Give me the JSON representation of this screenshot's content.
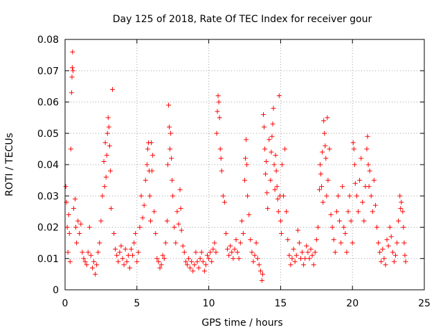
{
  "chart_data": {
    "type": "scatter",
    "title": "Day 125 of 2018, Rate Of TEC Index for receiver gour",
    "xlabel": "GPS time / hours",
    "ylabel": "ROTI / TECUs",
    "xlim": [
      0,
      25
    ],
    "ylim": [
      0,
      0.08
    ],
    "xticks": [
      0,
      5,
      10,
      15,
      20,
      25
    ],
    "yticks": [
      0,
      0.01,
      0.02,
      0.03,
      0.04,
      0.05,
      0.06,
      0.07,
      0.08
    ],
    "xtick_labels": [
      "0",
      "5",
      "10",
      "15",
      "20",
      "25"
    ],
    "ytick_labels": [
      "0",
      "0.01",
      "0.02",
      "0.03",
      "0.04",
      "0.05",
      "0.06",
      "0.07",
      "0.08"
    ],
    "grid": true,
    "marker": "plus",
    "color": "#ff0000",
    "series": [
      {
        "points": [
          [
            0.05,
            0.033
          ],
          [
            0.1,
            0.028
          ],
          [
            0.15,
            0.02
          ],
          [
            0.2,
            0.012
          ],
          [
            0.25,
            0.024
          ],
          [
            0.3,
            0.018
          ],
          [
            0.35,
            0.009
          ],
          [
            0.4,
            0.045
          ],
          [
            0.45,
            0.063
          ],
          [
            0.48,
            0.068
          ],
          [
            0.5,
            0.071
          ],
          [
            0.52,
            0.076
          ],
          [
            0.55,
            0.07
          ],
          [
            0.6,
            0.026
          ],
          [
            0.7,
            0.029
          ],
          [
            0.75,
            0.02
          ],
          [
            0.8,
            0.015
          ],
          [
            0.9,
            0.022
          ],
          [
            1.0,
            0.018
          ],
          [
            1.1,
            0.021
          ],
          [
            1.2,
            0.012
          ],
          [
            1.3,
            0.01
          ],
          [
            1.4,
            0.009
          ],
          [
            1.5,
            0.008
          ],
          [
            1.6,
            0.012
          ],
          [
            1.7,
            0.02
          ],
          [
            1.8,
            0.011
          ],
          [
            1.9,
            0.007
          ],
          [
            2.0,
            0.009
          ],
          [
            2.1,
            0.005
          ],
          [
            2.2,
            0.008
          ],
          [
            2.3,
            0.012
          ],
          [
            2.4,
            0.015
          ],
          [
            2.5,
            0.022
          ],
          [
            2.6,
            0.03
          ],
          [
            2.7,
            0.041
          ],
          [
            2.75,
            0.033
          ],
          [
            2.8,
            0.047
          ],
          [
            2.85,
            0.036
          ],
          [
            2.9,
            0.043
          ],
          [
            2.95,
            0.05
          ],
          [
            3.0,
            0.055
          ],
          [
            3.05,
            0.052
          ],
          [
            3.1,
            0.046
          ],
          [
            3.15,
            0.038
          ],
          [
            3.2,
            0.026
          ],
          [
            3.3,
            0.064
          ],
          [
            3.4,
            0.018
          ],
          [
            3.5,
            0.013
          ],
          [
            3.6,
            0.011
          ],
          [
            3.7,
            0.009
          ],
          [
            3.8,
            0.012
          ],
          [
            3.9,
            0.014
          ],
          [
            4.0,
            0.01
          ],
          [
            4.1,
            0.008
          ],
          [
            4.2,
            0.013
          ],
          [
            4.3,
            0.009
          ],
          [
            4.4,
            0.011
          ],
          [
            4.5,
            0.007
          ],
          [
            4.6,
            0.013
          ],
          [
            4.7,
            0.011
          ],
          [
            4.8,
            0.015
          ],
          [
            4.9,
            0.018
          ],
          [
            5.0,
            0.009
          ],
          [
            5.1,
            0.012
          ],
          [
            5.2,
            0.02
          ],
          [
            5.3,
            0.03
          ],
          [
            5.4,
            0.023
          ],
          [
            5.5,
            0.027
          ],
          [
            5.6,
            0.035
          ],
          [
            5.7,
            0.04
          ],
          [
            5.75,
            0.045
          ],
          [
            5.8,
            0.047
          ],
          [
            5.85,
            0.038
          ],
          [
            5.9,
            0.03
          ],
          [
            5.95,
            0.022
          ],
          [
            6.0,
            0.047
          ],
          [
            6.05,
            0.038
          ],
          [
            6.1,
            0.043
          ],
          [
            6.2,
            0.025
          ],
          [
            6.3,
            0.018
          ],
          [
            6.4,
            0.01
          ],
          [
            6.5,
            0.009
          ],
          [
            6.6,
            0.007
          ],
          [
            6.7,
            0.008
          ],
          [
            6.8,
            0.011
          ],
          [
            6.9,
            0.01
          ],
          [
            7.0,
            0.015
          ],
          [
            7.1,
            0.022
          ],
          [
            7.15,
            0.04
          ],
          [
            7.2,
            0.059
          ],
          [
            7.25,
            0.052
          ],
          [
            7.3,
            0.045
          ],
          [
            7.35,
            0.05
          ],
          [
            7.4,
            0.042
          ],
          [
            7.45,
            0.035
          ],
          [
            7.5,
            0.03
          ],
          [
            7.6,
            0.02
          ],
          [
            7.7,
            0.015
          ],
          [
            7.8,
            0.025
          ],
          [
            7.9,
            0.021
          ],
          [
            8.0,
            0.032
          ],
          [
            8.05,
            0.026
          ],
          [
            8.1,
            0.019
          ],
          [
            8.2,
            0.014
          ],
          [
            8.3,
            0.012
          ],
          [
            8.4,
            0.009
          ],
          [
            8.5,
            0.008
          ],
          [
            8.6,
            0.01
          ],
          [
            8.7,
            0.007
          ],
          [
            8.8,
            0.009
          ],
          [
            8.9,
            0.006
          ],
          [
            9.0,
            0.008
          ],
          [
            9.1,
            0.012
          ],
          [
            9.2,
            0.009
          ],
          [
            9.3,
            0.007
          ],
          [
            9.4,
            0.01
          ],
          [
            9.5,
            0.012
          ],
          [
            9.6,
            0.009
          ],
          [
            9.7,
            0.006
          ],
          [
            9.8,
            0.008
          ],
          [
            9.9,
            0.011
          ],
          [
            10.0,
            0.01
          ],
          [
            10.1,
            0.012
          ],
          [
            10.2,
            0.009
          ],
          [
            10.3,
            0.013
          ],
          [
            10.4,
            0.015
          ],
          [
            10.5,
            0.012
          ],
          [
            10.55,
            0.05
          ],
          [
            10.6,
            0.057
          ],
          [
            10.65,
            0.062
          ],
          [
            10.7,
            0.06
          ],
          [
            10.75,
            0.055
          ],
          [
            10.8,
            0.045
          ],
          [
            10.85,
            0.042
          ],
          [
            10.9,
            0.038
          ],
          [
            11.0,
            0.03
          ],
          [
            11.1,
            0.028
          ],
          [
            11.2,
            0.018
          ],
          [
            11.3,
            0.013
          ],
          [
            11.4,
            0.011
          ],
          [
            11.5,
            0.014
          ],
          [
            11.6,
            0.012
          ],
          [
            11.7,
            0.01
          ],
          [
            11.8,
            0.013
          ],
          [
            11.9,
            0.016
          ],
          [
            12.0,
            0.012
          ],
          [
            12.1,
            0.01
          ],
          [
            12.2,
            0.015
          ],
          [
            12.3,
            0.022
          ],
          [
            12.4,
            0.018
          ],
          [
            12.5,
            0.035
          ],
          [
            12.55,
            0.042
          ],
          [
            12.6,
            0.048
          ],
          [
            12.65,
            0.04
          ],
          [
            12.7,
            0.03
          ],
          [
            12.8,
            0.024
          ],
          [
            12.9,
            0.016
          ],
          [
            13.0,
            0.012
          ],
          [
            13.1,
            0.009
          ],
          [
            13.2,
            0.011
          ],
          [
            13.3,
            0.015
          ],
          [
            13.4,
            0.01
          ],
          [
            13.5,
            0.008
          ],
          [
            13.6,
            0.006
          ],
          [
            13.7,
            0.003
          ],
          [
            13.75,
            0.005
          ],
          [
            13.8,
            0.056
          ],
          [
            13.85,
            0.052
          ],
          [
            13.9,
            0.045
          ],
          [
            13.95,
            0.037
          ],
          [
            14.0,
            0.041
          ],
          [
            14.05,
            0.031
          ],
          [
            14.1,
            0.026
          ],
          [
            14.2,
            0.048
          ],
          [
            14.3,
            0.035
          ],
          [
            14.35,
            0.044
          ],
          [
            14.4,
            0.049
          ],
          [
            14.45,
            0.053
          ],
          [
            14.5,
            0.058
          ],
          [
            14.55,
            0.04
          ],
          [
            14.6,
            0.032
          ],
          [
            14.65,
            0.043
          ],
          [
            14.7,
            0.038
          ],
          [
            14.75,
            0.033
          ],
          [
            14.8,
            0.029
          ],
          [
            14.85,
            0.025
          ],
          [
            14.9,
            0.062
          ],
          [
            14.95,
            0.03
          ],
          [
            15.0,
            0.022
          ],
          [
            15.05,
            0.018
          ],
          [
            15.1,
            0.04
          ],
          [
            15.2,
            0.03
          ],
          [
            15.3,
            0.045
          ],
          [
            15.4,
            0.025
          ],
          [
            15.5,
            0.016
          ],
          [
            15.6,
            0.011
          ],
          [
            15.7,
            0.008
          ],
          [
            15.8,
            0.01
          ],
          [
            15.9,
            0.013
          ],
          [
            16.0,
            0.009
          ],
          [
            16.1,
            0.011
          ],
          [
            16.2,
            0.019
          ],
          [
            16.3,
            0.015
          ],
          [
            16.4,
            0.01
          ],
          [
            16.5,
            0.012
          ],
          [
            16.6,
            0.008
          ],
          [
            16.7,
            0.01
          ],
          [
            16.8,
            0.014
          ],
          [
            16.9,
            0.012
          ],
          [
            17.0,
            0.01
          ],
          [
            17.1,
            0.013
          ],
          [
            17.2,
            0.011
          ],
          [
            17.3,
            0.008
          ],
          [
            17.4,
            0.012
          ],
          [
            17.5,
            0.016
          ],
          [
            17.6,
            0.02
          ],
          [
            17.7,
            0.032
          ],
          [
            17.75,
            0.04
          ],
          [
            17.8,
            0.037
          ],
          [
            17.85,
            0.033
          ],
          [
            17.9,
            0.044
          ],
          [
            17.95,
            0.028
          ],
          [
            18.0,
            0.054
          ],
          [
            18.05,
            0.05
          ],
          [
            18.1,
            0.046
          ],
          [
            18.15,
            0.042
          ],
          [
            18.2,
            0.03
          ],
          [
            18.25,
            0.055
          ],
          [
            18.3,
            0.035
          ],
          [
            18.4,
            0.045
          ],
          [
            18.5,
            0.024
          ],
          [
            18.6,
            0.02
          ],
          [
            18.7,
            0.016
          ],
          [
            18.8,
            0.012
          ],
          [
            18.9,
            0.025
          ],
          [
            19.0,
            0.03
          ],
          [
            19.1,
            0.022
          ],
          [
            19.2,
            0.015
          ],
          [
            19.3,
            0.033
          ],
          [
            19.4,
            0.02
          ],
          [
            19.5,
            0.018
          ],
          [
            19.6,
            0.012
          ],
          [
            19.7,
            0.025
          ],
          [
            19.8,
            0.03
          ],
          [
            19.9,
            0.022
          ],
          [
            20.0,
            0.015
          ],
          [
            20.05,
            0.047
          ],
          [
            20.1,
            0.045
          ],
          [
            20.15,
            0.04
          ],
          [
            20.2,
            0.034
          ],
          [
            20.3,
            0.03
          ],
          [
            20.4,
            0.025
          ],
          [
            20.5,
            0.035
          ],
          [
            20.6,
            0.042
          ],
          [
            20.7,
            0.028
          ],
          [
            20.8,
            0.022
          ],
          [
            20.9,
            0.033
          ],
          [
            21.0,
            0.045
          ],
          [
            21.05,
            0.049
          ],
          [
            21.1,
            0.04
          ],
          [
            21.15,
            0.033
          ],
          [
            21.2,
            0.038
          ],
          [
            21.3,
            0.03
          ],
          [
            21.4,
            0.025
          ],
          [
            21.5,
            0.035
          ],
          [
            21.6,
            0.027
          ],
          [
            21.7,
            0.02
          ],
          [
            21.8,
            0.015
          ],
          [
            21.9,
            0.012
          ],
          [
            22.0,
            0.009
          ],
          [
            22.1,
            0.013
          ],
          [
            22.2,
            0.01
          ],
          [
            22.3,
            0.008
          ],
          [
            22.4,
            0.016
          ],
          [
            22.5,
            0.014
          ],
          [
            22.6,
            0.02
          ],
          [
            22.7,
            0.017
          ],
          [
            22.8,
            0.012
          ],
          [
            22.9,
            0.009
          ],
          [
            23.0,
            0.011
          ],
          [
            23.1,
            0.015
          ],
          [
            23.2,
            0.022
          ],
          [
            23.3,
            0.03
          ],
          [
            23.35,
            0.026
          ],
          [
            23.4,
            0.028
          ],
          [
            23.5,
            0.025
          ],
          [
            23.55,
            0.02
          ],
          [
            23.6,
            0.015
          ],
          [
            23.65,
            0.011
          ],
          [
            23.7,
            0.009
          ]
        ]
      }
    ]
  }
}
